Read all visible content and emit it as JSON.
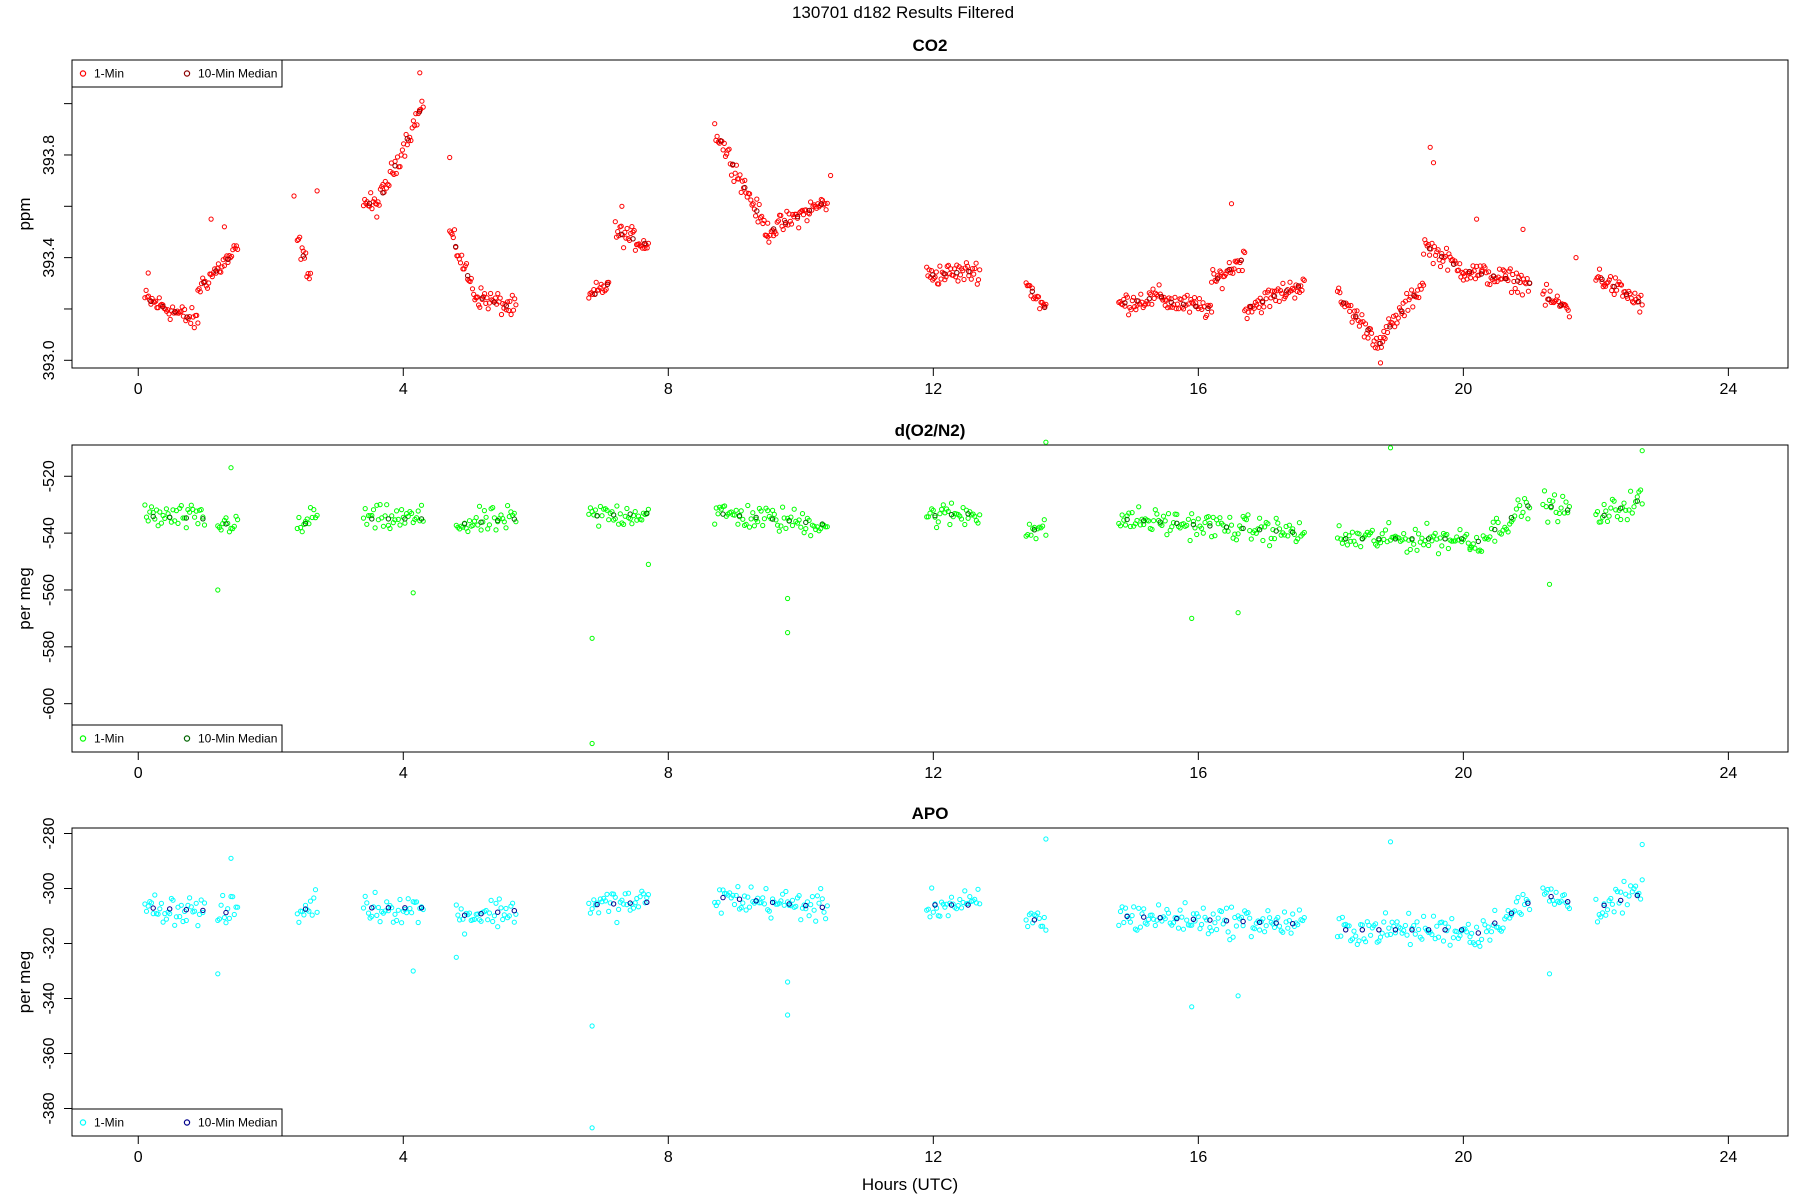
{
  "page": {
    "title": "130701   d182   Results Filtered",
    "xlabel": "Hours (UTC)"
  },
  "chart_data": [
    {
      "type": "scatter",
      "title": "CO2",
      "xlabel": "",
      "ylabel": "ppm",
      "xlim": [
        -1,
        24.9
      ],
      "ylim": [
        392.97,
        394.17
      ],
      "xticks": [
        0,
        4,
        8,
        12,
        16,
        20,
        24
      ],
      "yticks": [
        393.0,
        393.2,
        393.4,
        393.6,
        393.8,
        394.0
      ],
      "ytick_labels": [
        "393.0",
        "",
        "393.4",
        "",
        "393.8",
        ""
      ],
      "legend": {
        "position": "top-left",
        "entries": [
          "1-Min",
          "10-Min Median"
        ]
      },
      "colors": {
        "one_min": "#ff0000",
        "median": "#8b0000"
      },
      "segments": [
        {
          "x": [
            0.1,
            0.9
          ],
          "y": [
            393.24,
            393.15
          ]
        },
        {
          "x": [
            0.9,
            1.5
          ],
          "y": [
            393.28,
            393.43
          ]
        },
        {
          "x": [
            2.4,
            2.6
          ],
          "y": [
            393.47,
            393.33
          ]
        },
        {
          "x": [
            3.4,
            3.6
          ],
          "y": [
            393.62,
            393.6
          ]
        },
        {
          "x": [
            3.6,
            4.3
          ],
          "y": [
            393.6,
            394.0
          ]
        },
        {
          "x": [
            4.7,
            5.1
          ],
          "y": [
            393.5,
            393.25
          ]
        },
        {
          "x": [
            5.1,
            5.7
          ],
          "y": [
            393.25,
            393.2
          ]
        },
        {
          "x": [
            6.8,
            7.1
          ],
          "y": [
            393.24,
            393.3
          ]
        },
        {
          "x": [
            7.2,
            7.7
          ],
          "y": [
            393.5,
            393.45
          ]
        },
        {
          "x": [
            8.7,
            9.5
          ],
          "y": [
            393.9,
            393.5
          ]
        },
        {
          "x": [
            9.5,
            10.4
          ],
          "y": [
            393.5,
            393.62
          ]
        },
        {
          "x": [
            11.9,
            12.7
          ],
          "y": [
            393.33,
            393.35
          ]
        },
        {
          "x": [
            13.4,
            13.7
          ],
          "y": [
            393.3,
            393.2
          ]
        },
        {
          "x": [
            14.8,
            15.5
          ],
          "y": [
            393.22,
            393.25
          ]
        },
        {
          "x": [
            15.5,
            16.2
          ],
          "y": [
            393.23,
            393.2
          ]
        },
        {
          "x": [
            16.2,
            16.7
          ],
          "y": [
            393.3,
            393.4
          ]
        },
        {
          "x": [
            16.7,
            17.6
          ],
          "y": [
            393.2,
            393.3
          ]
        },
        {
          "x": [
            18.1,
            18.8
          ],
          "y": [
            393.25,
            393.05
          ]
        },
        {
          "x": [
            18.8,
            19.4
          ],
          "y": [
            393.1,
            393.3
          ]
        },
        {
          "x": [
            19.4,
            20.0
          ],
          "y": [
            393.45,
            393.35
          ]
        },
        {
          "x": [
            20.0,
            21.0
          ],
          "y": [
            393.35,
            393.3
          ]
        },
        {
          "x": [
            21.2,
            21.6
          ],
          "y": [
            393.25,
            393.2
          ]
        },
        {
          "x": [
            22.0,
            22.7
          ],
          "y": [
            393.33,
            393.22
          ]
        }
      ],
      "noise": 0.045,
      "density": 55,
      "points": [
        {
          "x": 0.15,
          "y": 393.34
        },
        {
          "x": 1.1,
          "y": 393.55
        },
        {
          "x": 1.3,
          "y": 393.52
        },
        {
          "x": 2.35,
          "y": 393.64
        },
        {
          "x": 2.7,
          "y": 393.66
        },
        {
          "x": 4.25,
          "y": 394.12
        },
        {
          "x": 4.7,
          "y": 393.79
        },
        {
          "x": 7.3,
          "y": 393.6
        },
        {
          "x": 10.45,
          "y": 393.72
        },
        {
          "x": 16.5,
          "y": 393.61
        },
        {
          "x": 19.5,
          "y": 393.83
        },
        {
          "x": 19.55,
          "y": 393.77
        },
        {
          "x": 18.75,
          "y": 392.99
        },
        {
          "x": 20.2,
          "y": 393.55
        },
        {
          "x": 20.9,
          "y": 393.51
        },
        {
          "x": 21.7,
          "y": 393.4
        }
      ]
    },
    {
      "type": "scatter",
      "title": "d(O2/N2)",
      "xlabel": "",
      "ylabel": "per meg",
      "xlim": [
        -1,
        24.9
      ],
      "ylim": [
        -617,
        -509
      ],
      "xticks": [
        0,
        4,
        8,
        12,
        16,
        20,
        24
      ],
      "yticks": [
        -600,
        -580,
        -560,
        -540,
        -520
      ],
      "ytick_labels": [
        "-600",
        "-580",
        "-560",
        "-540",
        "-520"
      ],
      "legend": {
        "position": "bottom-left",
        "entries": [
          "1-Min",
          "10-Min Median"
        ]
      },
      "colors": {
        "one_min": "#00ff00",
        "median": "#006400"
      },
      "segments": [
        {
          "x": [
            0.1,
            1.0
          ],
          "y": [
            -534,
            -535
          ]
        },
        {
          "x": [
            1.2,
            1.5
          ],
          "y": [
            -538,
            -535
          ]
        },
        {
          "x": [
            2.4,
            2.7
          ],
          "y": [
            -540,
            -532
          ]
        },
        {
          "x": [
            3.4,
            4.3
          ],
          "y": [
            -535,
            -535
          ]
        },
        {
          "x": [
            4.8,
            5.7
          ],
          "y": [
            -537,
            -535
          ]
        },
        {
          "x": [
            6.8,
            7.7
          ],
          "y": [
            -534,
            -533
          ]
        },
        {
          "x": [
            8.7,
            10.4
          ],
          "y": [
            -533,
            -537
          ]
        },
        {
          "x": [
            11.9,
            12.7
          ],
          "y": [
            -534,
            -533
          ]
        },
        {
          "x": [
            13.4,
            13.7
          ],
          "y": [
            -538,
            -540
          ]
        },
        {
          "x": [
            14.8,
            17.6
          ],
          "y": [
            -535,
            -540
          ]
        },
        {
          "x": [
            18.1,
            20.1
          ],
          "y": [
            -542,
            -542
          ]
        },
        {
          "x": [
            20.1,
            21.0
          ],
          "y": [
            -545,
            -530
          ]
        },
        {
          "x": [
            21.2,
            21.6
          ],
          "y": [
            -530,
            -532
          ]
        },
        {
          "x": [
            22.0,
            22.7
          ],
          "y": [
            -535,
            -528
          ]
        }
      ],
      "noise": 5,
      "density": 40,
      "points": [
        {
          "x": 6.85,
          "y": -614
        },
        {
          "x": 6.85,
          "y": -577
        },
        {
          "x": 9.8,
          "y": -575
        },
        {
          "x": 9.8,
          "y": -563
        },
        {
          "x": 13.7,
          "y": -508
        },
        {
          "x": 1.4,
          "y": -517
        },
        {
          "x": 1.2,
          "y": -560
        },
        {
          "x": 4.15,
          "y": -561
        },
        {
          "x": 18.9,
          "y": -510
        },
        {
          "x": 22.7,
          "y": -511
        },
        {
          "x": 15.9,
          "y": -570
        },
        {
          "x": 16.6,
          "y": -568
        },
        {
          "x": 7.7,
          "y": -551
        },
        {
          "x": 21.3,
          "y": -558
        }
      ]
    },
    {
      "type": "scatter",
      "title": "APO",
      "xlabel": "Hours (UTC)",
      "ylabel": "per meg",
      "xlim": [
        -1,
        24.9
      ],
      "ylim": [
        -390,
        -278
      ],
      "xticks": [
        0,
        4,
        8,
        12,
        16,
        20,
        24
      ],
      "yticks": [
        -380,
        -360,
        -340,
        -320,
        -300,
        -280
      ],
      "ytick_labels": [
        "-380",
        "-360",
        "-340",
        "-320",
        "-300",
        "-280"
      ],
      "legend": {
        "position": "bottom-left",
        "entries": [
          "1-Min",
          "10-Min Median"
        ]
      },
      "colors": {
        "one_min": "#00ffff",
        "median": "#00008b"
      },
      "segments": [
        {
          "x": [
            0.1,
            1.0
          ],
          "y": [
            -307,
            -308
          ]
        },
        {
          "x": [
            1.2,
            1.5
          ],
          "y": [
            -310,
            -307
          ]
        },
        {
          "x": [
            2.4,
            2.7
          ],
          "y": [
            -310,
            -304
          ]
        },
        {
          "x": [
            3.4,
            4.3
          ],
          "y": [
            -307,
            -307
          ]
        },
        {
          "x": [
            4.8,
            5.7
          ],
          "y": [
            -310,
            -308
          ]
        },
        {
          "x": [
            6.8,
            7.7
          ],
          "y": [
            -306,
            -305
          ]
        },
        {
          "x": [
            8.7,
            10.4
          ],
          "y": [
            -303,
            -307
          ]
        },
        {
          "x": [
            11.9,
            12.7
          ],
          "y": [
            -306,
            -306
          ]
        },
        {
          "x": [
            13.4,
            13.7
          ],
          "y": [
            -311,
            -312
          ]
        },
        {
          "x": [
            14.8,
            17.6
          ],
          "y": [
            -310,
            -313
          ]
        },
        {
          "x": [
            18.1,
            20.1
          ],
          "y": [
            -315,
            -315
          ]
        },
        {
          "x": [
            20.1,
            21.0
          ],
          "y": [
            -318,
            -305
          ]
        },
        {
          "x": [
            21.2,
            21.6
          ],
          "y": [
            -302,
            -305
          ]
        },
        {
          "x": [
            22.0,
            22.7
          ],
          "y": [
            -307,
            -302
          ]
        }
      ],
      "noise": 6,
      "density": 40,
      "points": [
        {
          "x": 6.85,
          "y": -387
        },
        {
          "x": 6.85,
          "y": -350
        },
        {
          "x": 9.8,
          "y": -346
        },
        {
          "x": 9.8,
          "y": -334
        },
        {
          "x": 13.7,
          "y": -282
        },
        {
          "x": 1.4,
          "y": -289
        },
        {
          "x": 1.2,
          "y": -331
        },
        {
          "x": 4.15,
          "y": -330
        },
        {
          "x": 18.9,
          "y": -283
        },
        {
          "x": 22.7,
          "y": -284
        },
        {
          "x": 15.9,
          "y": -343
        },
        {
          "x": 16.6,
          "y": -339
        },
        {
          "x": 4.8,
          "y": -325
        },
        {
          "x": 21.3,
          "y": -331
        }
      ]
    }
  ]
}
